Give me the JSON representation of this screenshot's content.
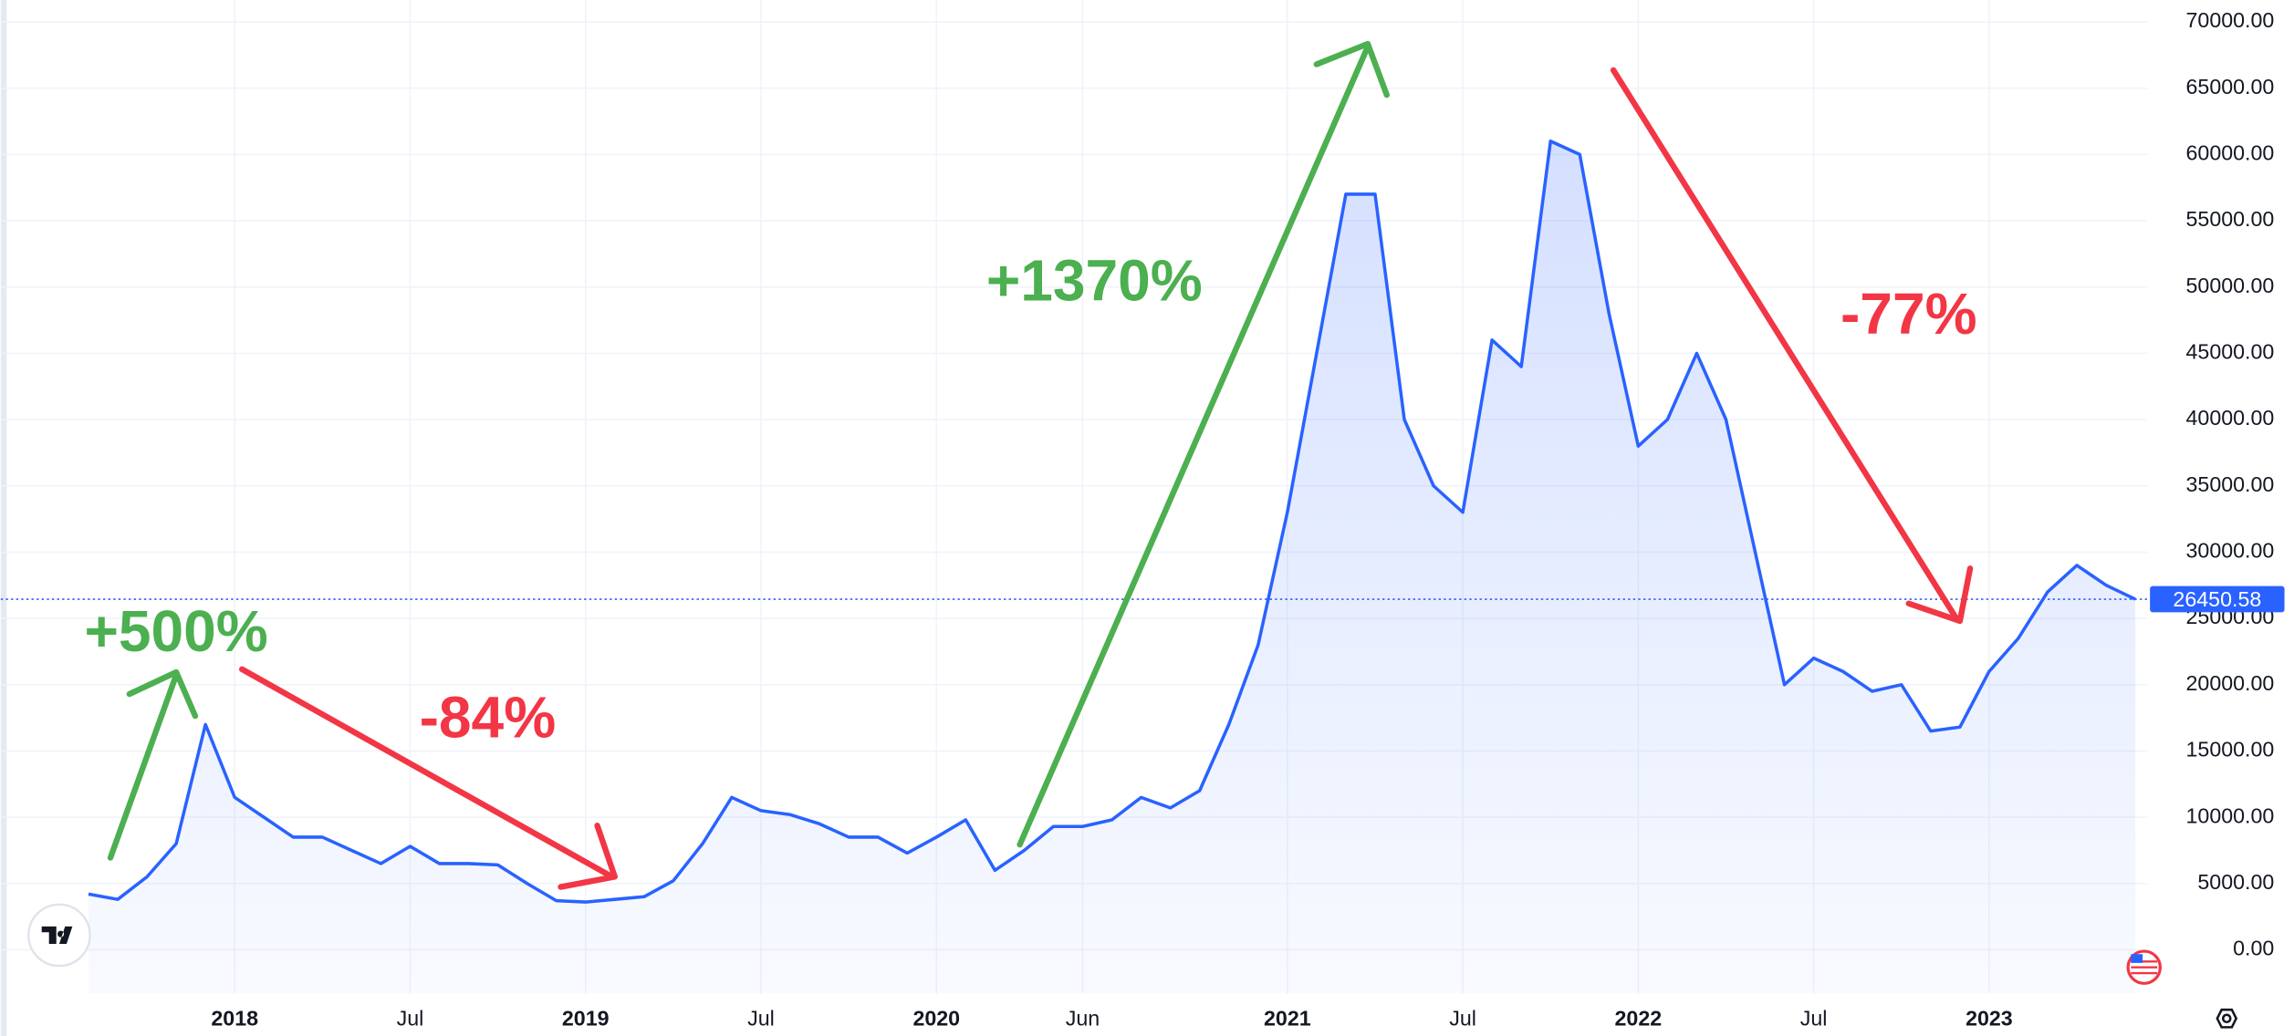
{
  "chart_data": {
    "type": "line",
    "x": [
      "2017-08",
      "2017-09",
      "2017-10",
      "2017-11",
      "2017-12",
      "2018-01",
      "2018-02",
      "2018-03",
      "2018-04",
      "2018-05",
      "2018-06",
      "2018-07",
      "2018-08",
      "2018-09",
      "2018-10",
      "2018-11",
      "2018-12",
      "2019-01",
      "2019-02",
      "2019-03",
      "2019-04",
      "2019-05",
      "2019-06",
      "2019-07",
      "2019-08",
      "2019-09",
      "2019-10",
      "2019-11",
      "2019-12",
      "2020-01",
      "2020-02",
      "2020-03",
      "2020-04",
      "2020-05",
      "2020-06",
      "2020-07",
      "2020-08",
      "2020-09",
      "2020-10",
      "2020-11",
      "2020-12",
      "2021-01",
      "2021-02",
      "2021-03",
      "2021-04",
      "2021-05",
      "2021-06",
      "2021-07",
      "2021-08",
      "2021-09",
      "2021-10",
      "2021-11",
      "2021-12",
      "2022-01",
      "2022-02",
      "2022-03",
      "2022-04",
      "2022-05",
      "2022-06",
      "2022-07",
      "2022-08",
      "2022-09",
      "2022-10",
      "2022-11",
      "2022-12",
      "2023-01",
      "2023-02",
      "2023-03",
      "2023-04",
      "2023-05",
      "2023-06"
    ],
    "series": [
      {
        "color": "#2962ff",
        "values": [
          4200,
          3800,
          5500,
          8000,
          17000,
          11500,
          10000,
          8500,
          8500,
          7500,
          6500,
          7800,
          6500,
          6500,
          6400,
          5000,
          3700,
          3600,
          3800,
          4000,
          5200,
          8000,
          11500,
          10500,
          10200,
          9500,
          8500,
          8500,
          7300,
          8500,
          9800,
          6000,
          7500,
          9300,
          9300,
          9800,
          11500,
          10700,
          12000,
          17000,
          23000,
          33000,
          45000,
          57000,
          57000,
          40000,
          35000,
          33000,
          46000,
          44000,
          61000,
          60000,
          48000,
          38000,
          40000,
          45000,
          40000,
          30000,
          20000,
          22000,
          21000,
          19500,
          20000,
          16500,
          16800,
          21000,
          23500,
          27000,
          29000,
          27500,
          26450.58
        ]
      }
    ],
    "last_price": 26450.58,
    "ylim": [
      0,
      70000
    ],
    "yticks": [
      {
        "value": 0,
        "label": "0.00"
      },
      {
        "value": 5000,
        "label": "5000.00"
      },
      {
        "value": 10000,
        "label": "10000.00"
      },
      {
        "value": 15000,
        "label": "15000.00"
      },
      {
        "value": 20000,
        "label": "20000.00"
      },
      {
        "value": 25000,
        "label": "25000.00"
      },
      {
        "value": 30000,
        "label": "30000.00"
      },
      {
        "value": 35000,
        "label": "35000.00"
      },
      {
        "value": 40000,
        "label": "40000.00"
      },
      {
        "value": 45000,
        "label": "45000.00"
      },
      {
        "value": 50000,
        "label": "50000.00"
      },
      {
        "value": 55000,
        "label": "55000.00"
      },
      {
        "value": 60000,
        "label": "60000.00"
      },
      {
        "value": 65000,
        "label": "65000.00"
      },
      {
        "value": 70000,
        "label": "70000.00"
      }
    ],
    "xticks": [
      {
        "value": "2018-01",
        "label": "2018"
      },
      {
        "value": "2018-07",
        "label": "Jul"
      },
      {
        "value": "2019-01",
        "label": "2019"
      },
      {
        "value": "2019-07",
        "label": "Jul"
      },
      {
        "value": "2020-01",
        "label": "2020"
      },
      {
        "value": "2020-06",
        "label": "Jun"
      },
      {
        "value": "2021-01",
        "label": "2021"
      },
      {
        "value": "2021-07",
        "label": "Jul"
      },
      {
        "value": "2022-01",
        "label": "2022"
      },
      {
        "value": "2022-07",
        "label": "Jul"
      },
      {
        "value": "2023-01",
        "label": "2023"
      }
    ],
    "grid": true,
    "annotations": [
      {
        "text": "+500%",
        "color": "#4caf50"
      },
      {
        "text": "-84%",
        "color": "#f23645"
      },
      {
        "text": "+1370%",
        "color": "#4caf50"
      },
      {
        "text": "-77%",
        "color": "#f23645"
      }
    ]
  }
}
